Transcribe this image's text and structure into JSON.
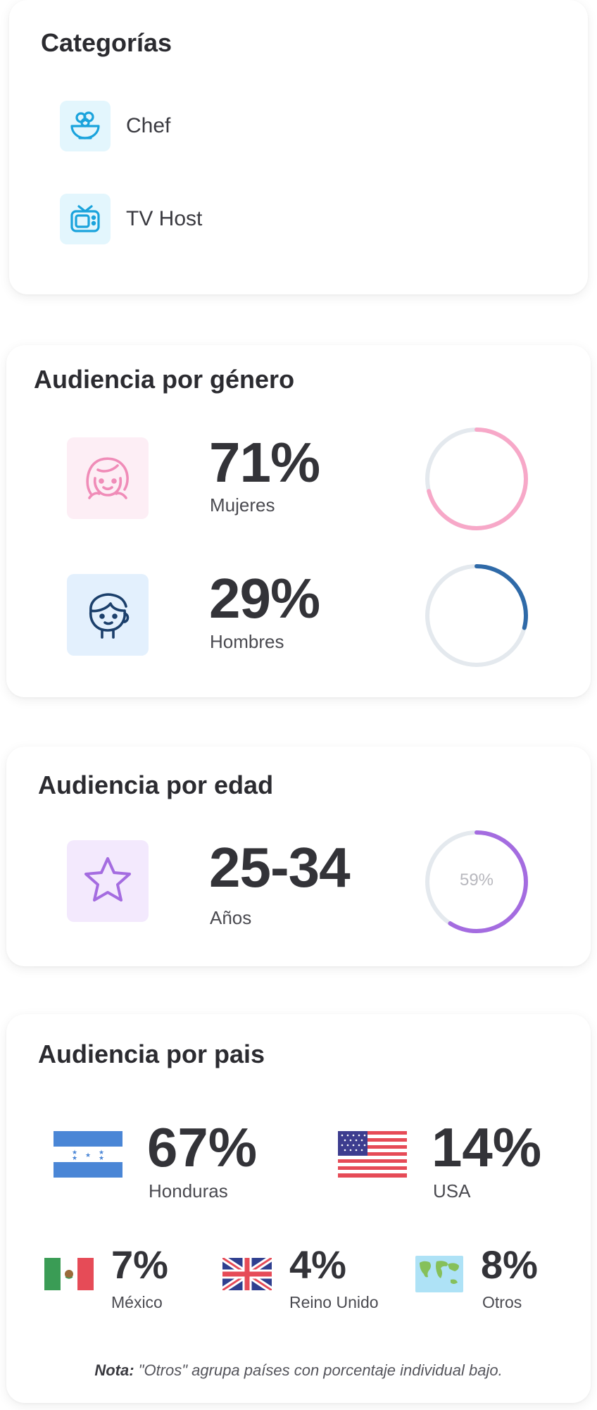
{
  "categories": {
    "title": "Categorías",
    "items": [
      {
        "label": "Chef",
        "icon": "salad-bowl-icon"
      },
      {
        "label": "TV Host",
        "icon": "tv-icon"
      }
    ]
  },
  "gender": {
    "title": "Audiencia por género",
    "women": {
      "percent_label": "71%",
      "label": "Mujeres",
      "value": 71,
      "color": "#f7a8c8",
      "icon": "girl-face-icon"
    },
    "men": {
      "percent_label": "29%",
      "label": "Hombres",
      "value": 29,
      "color": "#2f6aa8",
      "icon": "boy-face-icon"
    }
  },
  "age": {
    "title": "Audiencia por edad",
    "range": "25-34",
    "label": "Años",
    "ring_label": "59%",
    "value": 59,
    "color": "#a46ce0",
    "icon": "star-icon"
  },
  "country": {
    "title": "Audiencia por pais",
    "items": [
      {
        "percent_label": "67%",
        "label": "Honduras",
        "flag": "honduras-flag-icon"
      },
      {
        "percent_label": "14%",
        "label": "USA",
        "flag": "usa-flag-icon"
      },
      {
        "percent_label": "7%",
        "label": "México",
        "flag": "mexico-flag-icon"
      },
      {
        "percent_label": "4%",
        "label": "Reino Unido",
        "flag": "uk-flag-icon"
      },
      {
        "percent_label": "8%",
        "label": "Otros",
        "flag": "world-map-icon"
      }
    ],
    "note_bold": "Nota:",
    "note_text": " \"Otros\" agrupa países con porcentaje individual bajo."
  }
}
